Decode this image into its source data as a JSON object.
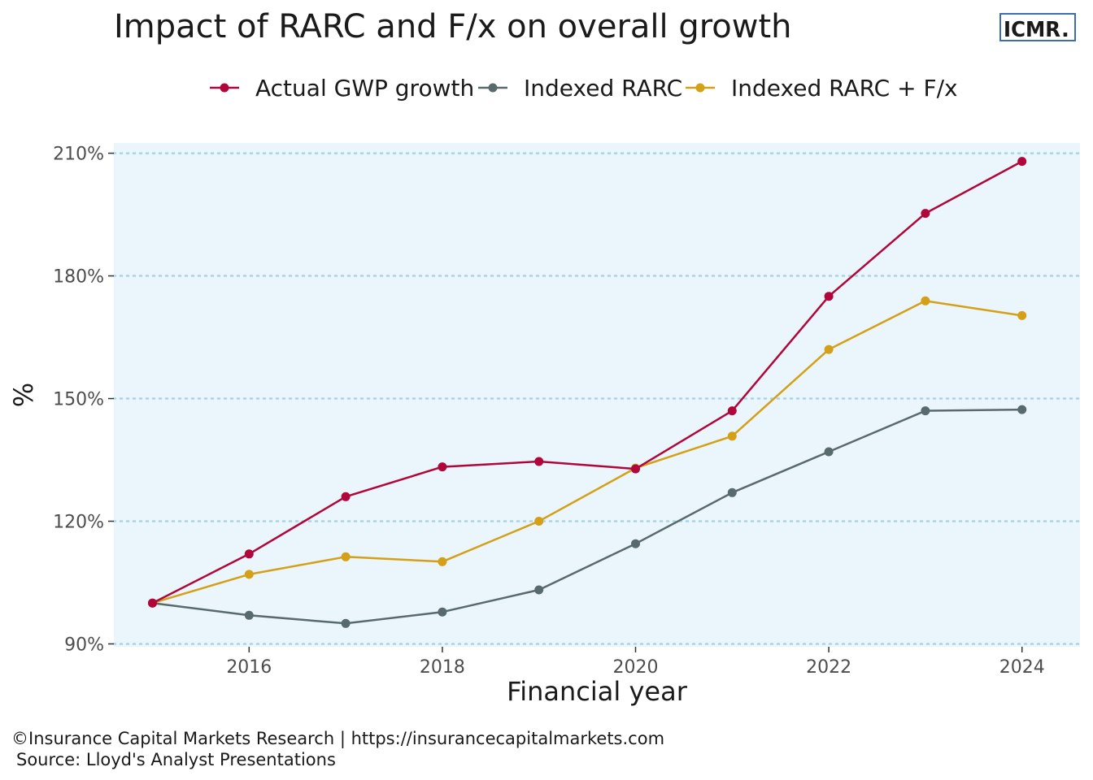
{
  "header": {
    "title": "Impact of RARC and F/x on overall growth",
    "logo_text": "ICMR",
    "logo_dot": ".",
    "logo_dot_color": "#e8232a",
    "logo_border_color": "#3b6db3"
  },
  "caption": {
    "line1": "©Insurance Capital Markets Research | https://insurancecapitalmarkets.com",
    "line2": "Source: Lloyd's Analyst Presentations"
  },
  "chart_data": {
    "type": "line",
    "title": "Impact of RARC and F/x on overall growth",
    "xlabel": "Financial year",
    "ylabel": "%",
    "x": [
      2015,
      2016,
      2017,
      2018,
      2019,
      2020,
      2021,
      2022,
      2023,
      2024
    ],
    "xlim": [
      2014.6,
      2024.6
    ],
    "ylim": [
      89.3,
      212.5
    ],
    "x_ticks": [
      2016,
      2018,
      2020,
      2022,
      2024
    ],
    "x_tick_labels": [
      "2016",
      "2018",
      "2020",
      "2022",
      "2024"
    ],
    "y_ticks": [
      90,
      120,
      150,
      180,
      210
    ],
    "y_tick_labels": [
      "90%",
      "120%",
      "150%",
      "180%",
      "210%"
    ],
    "grid": "horizontal dotted",
    "legend_position": "top",
    "panel_background": "#ebf5fc",
    "grid_color": "#a6d5e3",
    "series": [
      {
        "name": "Actual GWP growth",
        "color": "#b0063a",
        "values": [
          100,
          112,
          126,
          133.3,
          134.6,
          132.8,
          147,
          175,
          195.3,
          208
        ]
      },
      {
        "name": "Indexed RARC",
        "color": "#596a6d",
        "values": [
          100,
          97,
          95,
          97.8,
          103.2,
          114.5,
          127,
          137,
          147,
          147.3
        ]
      },
      {
        "name": "Indexed RARC + F/x",
        "color": "#d4a017",
        "values": [
          100,
          107,
          111.3,
          110.1,
          120,
          133,
          140.8,
          162,
          173.9,
          170.3
        ]
      }
    ]
  }
}
